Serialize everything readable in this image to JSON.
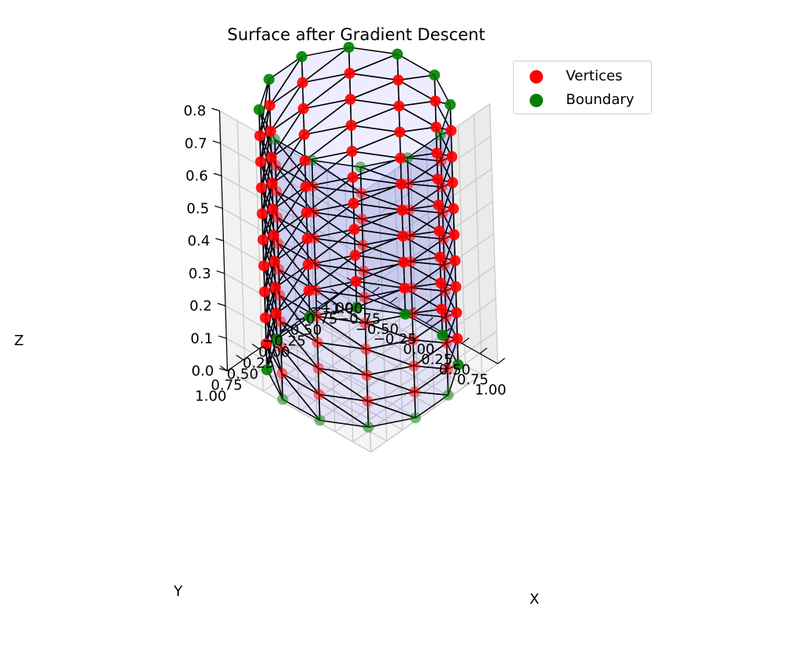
{
  "chart_data": {
    "type": "scatter",
    "projection": "3d",
    "title": "Surface after Gradient Descent",
    "xlabel": "X",
    "ylabel": "Y",
    "zlabel": "Z",
    "xlim": [
      -1.0,
      1.0
    ],
    "ylim": [
      -1.0,
      1.0
    ],
    "zlim": [
      0.0,
      0.8
    ],
    "xticks": [
      "−1.00",
      "−0.75",
      "−0.50",
      "−0.25",
      "0.00",
      "0.25",
      "0.50",
      "0.75",
      "1.00"
    ],
    "yticks": [
      "−1.00",
      "−0.75",
      "−0.50",
      "−0.25",
      "0.00",
      "0.25",
      "0.50",
      "0.75",
      "1.00"
    ],
    "zticks": [
      "0.0",
      "0.1",
      "0.2",
      "0.3",
      "0.4",
      "0.5",
      "0.6",
      "0.7",
      "0.8"
    ],
    "grid": true,
    "legend_position": "top-right",
    "columns": 12,
    "rows": 11,
    "radius": 1.0,
    "height": 0.8,
    "series": [
      {
        "name": "Vertices",
        "color": "#ff0000",
        "marker": "circle",
        "points": "interior rows 1-9 of 12 columns"
      },
      {
        "name": "Boundary",
        "color": "#008000",
        "marker": "circle",
        "points": "bottom and top rings"
      }
    ],
    "surface_color": "#0000ff",
    "edge_color": "#000000"
  }
}
